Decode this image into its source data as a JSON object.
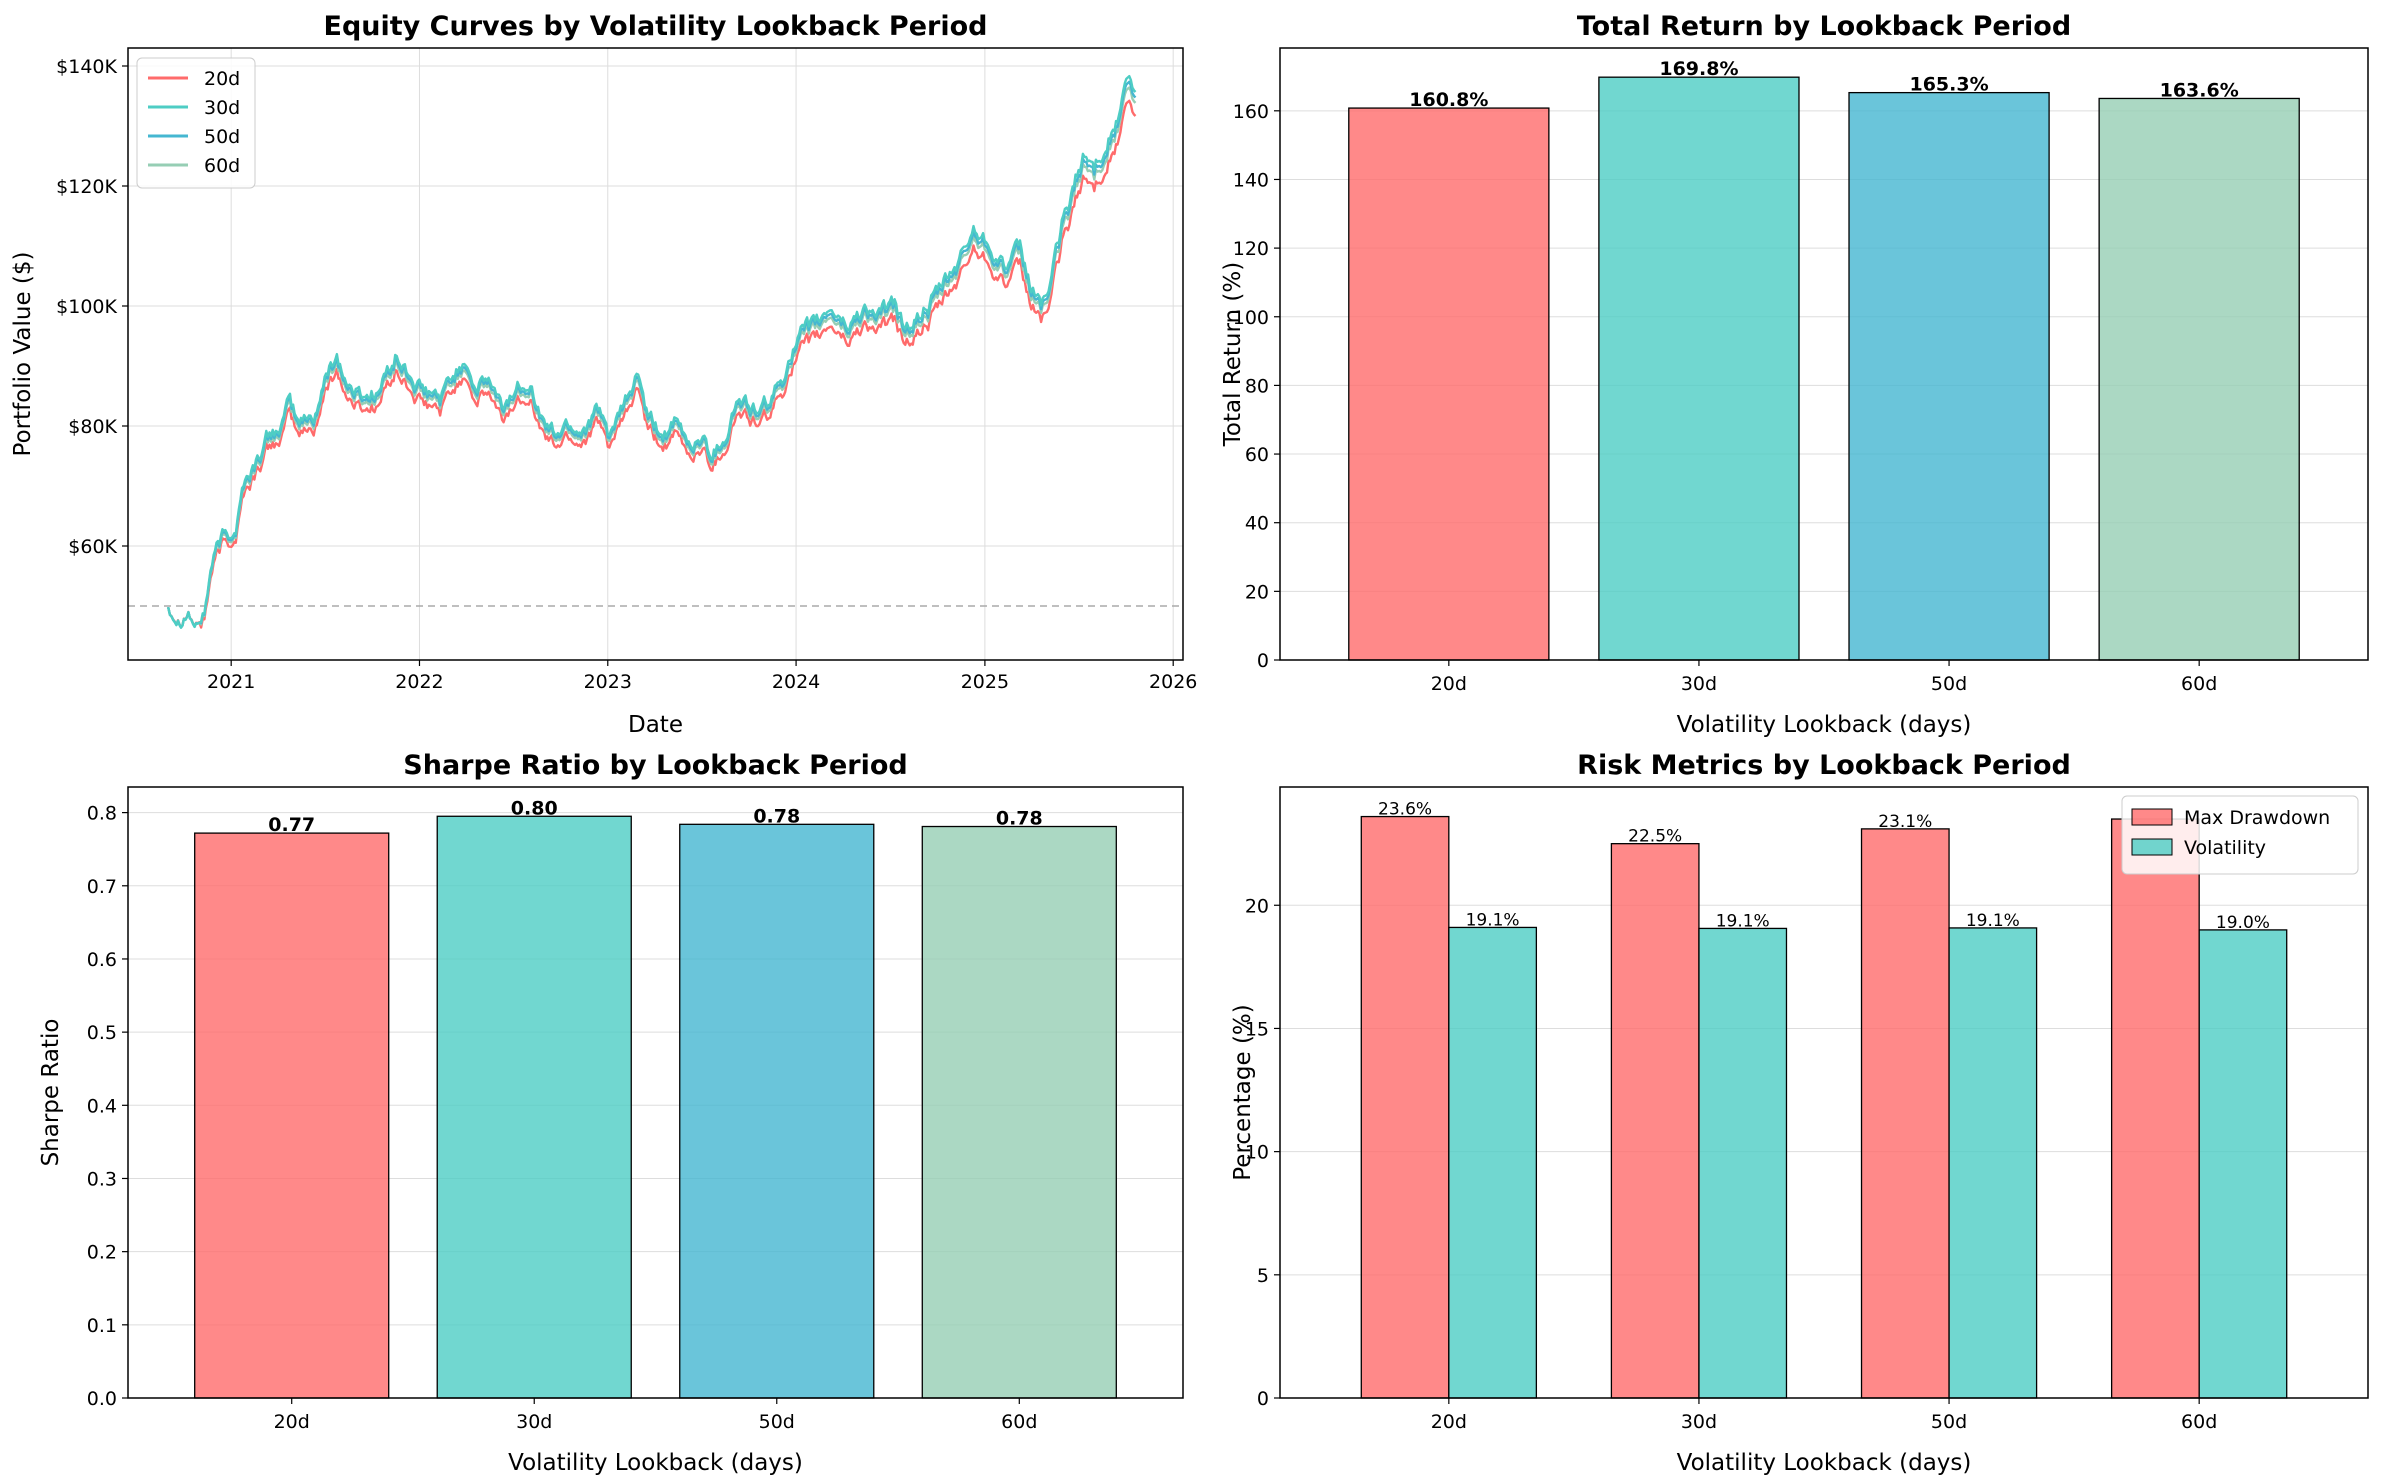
{
  "colors": {
    "20d": "#FF6B6B",
    "30d": "#4ECDC4",
    "50d": "#45B7D1",
    "60d": "#96CEB4",
    "grid": "#dddddd",
    "baseline": "#aaaaaa"
  },
  "chart_data": [
    {
      "id": "equity",
      "type": "line",
      "title": "Equity Curves by Volatility Lookback Period",
      "xlabel": "Date",
      "ylabel": "Portfolio Value ($)",
      "x_ticks": [
        "2021",
        "2022",
        "2023",
        "2024",
        "2025",
        "2026"
      ],
      "y_ticks": [
        "$60K",
        "$80K",
        "$100K",
        "$120K",
        "$140K"
      ],
      "y_tick_values": [
        60000,
        80000,
        100000,
        120000,
        140000
      ],
      "ylim": [
        41000,
        143000
      ],
      "xlim": [
        "2020-06-15",
        "2026-01-20"
      ],
      "baseline": 50000,
      "grid": true,
      "legend_position": "top-left",
      "series_names": [
        "20d",
        "30d",
        "50d",
        "60d"
      ],
      "series_offsets": [
        -2500,
        1000,
        200,
        -600
      ],
      "base_path": [
        [
          "2020-09-01",
          50000
        ],
        [
          "2020-09-20",
          48500
        ],
        [
          "2020-10-10",
          49500
        ],
        [
          "2020-10-25",
          46500
        ],
        [
          "2020-11-10",
          49000
        ],
        [
          "2020-11-25",
          57000
        ],
        [
          "2020-12-15",
          61000
        ],
        [
          "2021-01-10",
          63000
        ],
        [
          "2021-01-25",
          70000
        ],
        [
          "2021-02-15",
          73000
        ],
        [
          "2021-03-10",
          77000
        ],
        [
          "2021-04-10",
          80000
        ],
        [
          "2021-04-25",
          83000
        ],
        [
          "2021-05-10",
          80000
        ],
        [
          "2021-06-10",
          81000
        ],
        [
          "2021-06-25",
          85000
        ],
        [
          "2021-07-10",
          89000
        ],
        [
          "2021-07-25",
          91500
        ],
        [
          "2021-08-15",
          86000
        ],
        [
          "2021-09-15",
          84500
        ],
        [
          "2021-10-15",
          85500
        ],
        [
          "2021-11-15",
          91000
        ],
        [
          "2021-12-10",
          88000
        ],
        [
          "2022-01-10",
          84500
        ],
        [
          "2022-02-10",
          84000
        ],
        [
          "2022-03-10",
          88000
        ],
        [
          "2022-04-01",
          91000
        ],
        [
          "2022-04-20",
          86000
        ],
        [
          "2022-05-15",
          87000
        ],
        [
          "2022-06-10",
          82000
        ],
        [
          "2022-07-10",
          86000
        ],
        [
          "2022-08-01",
          88000
        ],
        [
          "2022-08-25",
          81000
        ],
        [
          "2022-09-20",
          78000
        ],
        [
          "2022-10-15",
          80000
        ],
        [
          "2022-11-10",
          79000
        ],
        [
          "2022-12-10",
          82000
        ],
        [
          "2023-01-01",
          78000
        ],
        [
          "2023-01-20",
          80000
        ],
        [
          "2023-02-10",
          84000
        ],
        [
          "2023-03-01",
          88000
        ],
        [
          "2023-03-20",
          80000
        ],
        [
          "2023-04-15",
          78000
        ],
        [
          "2023-05-10",
          79500
        ],
        [
          "2023-06-10",
          76000
        ],
        [
          "2023-07-01",
          78000
        ],
        [
          "2023-07-20",
          75000
        ],
        [
          "2023-08-15",
          78000
        ],
        [
          "2023-09-10",
          84000
        ],
        [
          "2023-10-01",
          82500
        ],
        [
          "2023-10-25",
          81500
        ],
        [
          "2023-11-15",
          84000
        ],
        [
          "2023-12-05",
          87000
        ],
        [
          "2023-12-20",
          92000
        ],
        [
          "2024-01-10",
          94000
        ],
        [
          "2024-02-10",
          96000
        ],
        [
          "2024-03-10",
          99000
        ],
        [
          "2024-04-10",
          96000
        ],
        [
          "2024-05-10",
          99000
        ],
        [
          "2024-06-10",
          98000
        ],
        [
          "2024-07-10",
          99000
        ],
        [
          "2024-07-25",
          96000
        ],
        [
          "2024-08-20",
          97000
        ],
        [
          "2024-09-10",
          99000
        ],
        [
          "2024-10-01",
          101000
        ],
        [
          "2024-10-25",
          104000
        ],
        [
          "2024-11-15",
          107000
        ],
        [
          "2024-12-10",
          112000
        ],
        [
          "2025-01-10",
          110000
        ],
        [
          "2025-02-10",
          106000
        ],
        [
          "2025-03-10",
          108000
        ],
        [
          "2025-04-01",
          102000
        ],
        [
          "2025-04-20",
          100000
        ],
        [
          "2025-05-10",
          103000
        ],
        [
          "2025-05-30",
          112000
        ],
        [
          "2025-06-20",
          118000
        ],
        [
          "2025-07-10",
          124000
        ],
        [
          "2025-08-01",
          122000
        ],
        [
          "2025-08-20",
          126000
        ],
        [
          "2025-09-15",
          130000
        ],
        [
          "2025-10-05",
          137000
        ],
        [
          "2025-10-20",
          133000
        ]
      ]
    },
    {
      "id": "total_return",
      "type": "bar",
      "title": "Total Return by Lookback Period",
      "xlabel": "Volatility Lookback (days)",
      "ylabel": "Total Return (%)",
      "categories": [
        "20d",
        "30d",
        "50d",
        "60d"
      ],
      "values": [
        160.8,
        169.8,
        165.3,
        163.6
      ],
      "value_labels": [
        "160.8%",
        "169.8%",
        "165.3%",
        "163.6%"
      ],
      "ylim": [
        0,
        178.3
      ],
      "y_tick_values": [
        0,
        20,
        40,
        60,
        80,
        100,
        120,
        140,
        160
      ],
      "y_ticks": [
        "0",
        "20",
        "40",
        "60",
        "80",
        "100",
        "120",
        "140",
        "160"
      ],
      "grid": true
    },
    {
      "id": "sharpe",
      "type": "bar",
      "title": "Sharpe Ratio by Lookback Period",
      "xlabel": "Volatility Lookback (days)",
      "ylabel": "Sharpe Ratio",
      "categories": [
        "20d",
        "30d",
        "50d",
        "60d"
      ],
      "values": [
        0.772,
        0.795,
        0.784,
        0.781
      ],
      "value_labels": [
        "0.77",
        "0.80",
        "0.78",
        "0.78"
      ],
      "ylim": [
        0,
        0.835
      ],
      "y_tick_values": [
        0,
        0.1,
        0.2,
        0.3,
        0.4,
        0.5,
        0.6,
        0.7,
        0.8
      ],
      "y_ticks": [
        "0.0",
        "0.1",
        "0.2",
        "0.3",
        "0.4",
        "0.5",
        "0.6",
        "0.7",
        "0.8"
      ],
      "grid": true
    },
    {
      "id": "risk",
      "type": "bar",
      "title": "Risk Metrics by Lookback Period",
      "xlabel": "Volatility Lookback (days)",
      "ylabel": "Percentage (%)",
      "categories": [
        "20d",
        "30d",
        "50d",
        "60d"
      ],
      "series": [
        {
          "name": "Max Drawdown",
          "values": [
            23.6,
            22.5,
            23.1,
            23.5
          ],
          "labels": [
            "23.6%",
            "22.5%",
            "23.1%",
            ""
          ]
        },
        {
          "name": "Volatility",
          "values": [
            19.1,
            19.06,
            19.08,
            19.0
          ],
          "labels": [
            "19.1%",
            "19.1%",
            "19.1%",
            "19.0%"
          ]
        }
      ],
      "ylim": [
        0,
        24.8
      ],
      "y_tick_values": [
        0,
        5,
        10,
        15,
        20
      ],
      "y_ticks": [
        "0",
        "5",
        "10",
        "15",
        "20"
      ],
      "grid": true,
      "legend_position": "top-right"
    }
  ]
}
